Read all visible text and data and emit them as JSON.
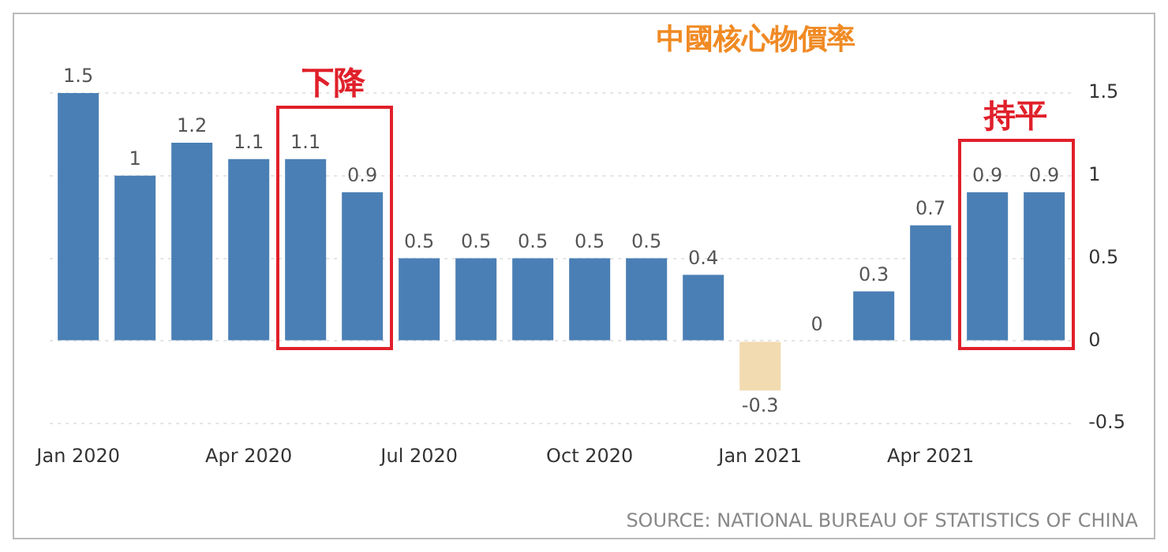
{
  "chart_data": {
    "type": "bar",
    "title": "中國核心物價率",
    "categories": [
      "Jan 2020",
      null,
      null,
      "Apr 2020",
      null,
      null,
      "Jul 2020",
      null,
      null,
      "Oct 2020",
      null,
      null,
      "Jan 2021",
      null,
      null,
      "Apr 2021",
      null,
      null
    ],
    "values": [
      1.5,
      1,
      1.2,
      1.1,
      1.1,
      0.9,
      0.5,
      0.5,
      0.5,
      0.5,
      0.5,
      0.4,
      -0.3,
      0,
      0.3,
      0.7,
      0.9,
      0.9
    ],
    "colors": [
      "#4a7fb5",
      "#4a7fb5",
      "#4a7fb5",
      "#4a7fb5",
      "#4a7fb5",
      "#4a7fb5",
      "#4a7fb5",
      "#4a7fb5",
      "#4a7fb5",
      "#4a7fb5",
      "#4a7fb5",
      "#4a7fb5",
      "#f2dbb0",
      "#4a7fb5",
      "#4a7fb5",
      "#4a7fb5",
      "#4a7fb5",
      "#4a7fb5"
    ],
    "ylim": [
      -0.5,
      1.5
    ],
    "yticks": [
      -0.5,
      0,
      0.5,
      1,
      1.5
    ],
    "grid": "y",
    "data_labels": true,
    "legend": false,
    "annotations": [
      "下降",
      "持平",
      "SOURCE: NATIONAL BUREAU OF STATISTICS OF CHINA"
    ]
  }
}
